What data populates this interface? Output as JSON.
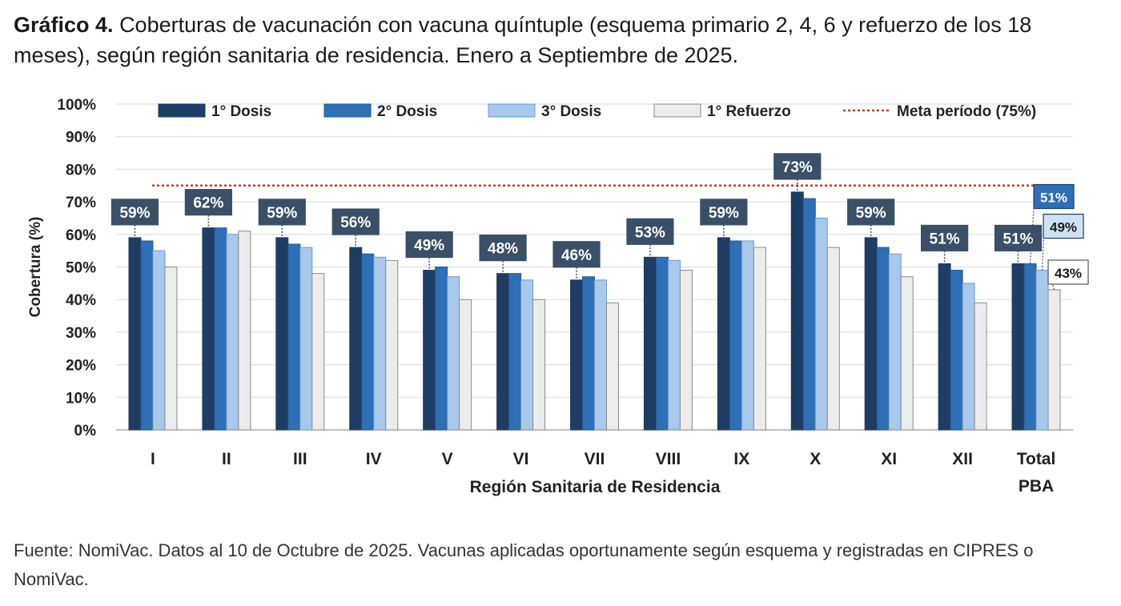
{
  "header": {
    "label": "Gráfico 4.",
    "text": "Coberturas de vacunación con vacuna quíntuple (esquema primario 2, 4, 6 y  refuerzo de los 18 meses), según región sanitaria de residencia. Enero a Septiembre de 2025."
  },
  "footer": {
    "source": "Fuente: NomiVac. Datos al 10 de Octubre de 2025. Vacunas aplicadas oportunamente según esquema y registradas en CIPRES o NomiVac."
  },
  "colors": {
    "dosis1": "#1f3d64",
    "dosis2": "#2e6fb5",
    "dosis3": "#a8c8ec",
    "refuerzo": "#ececec",
    "meta": "#c0392b",
    "label_box": "#3b4f66"
  },
  "chart_data": {
    "type": "bar",
    "title": "",
    "xlabel": "Región Sanitaria de Residencia",
    "ylabel": "Cobertura (%)",
    "ylim": [
      0,
      100
    ],
    "yticks": [
      0,
      10,
      20,
      30,
      40,
      50,
      60,
      70,
      80,
      90,
      100
    ],
    "ytick_labels": [
      "0%",
      "10%",
      "20%",
      "30%",
      "40%",
      "50%",
      "60%",
      "70%",
      "80%",
      "90%",
      "100%"
    ],
    "grid": true,
    "legend_position": "top",
    "categories": [
      "I",
      "II",
      "III",
      "IV",
      "V",
      "VI",
      "VII",
      "VIII",
      "IX",
      "X",
      "XI",
      "XII",
      "Total PBA"
    ],
    "series": [
      {
        "name": "1° Dosis",
        "values": [
          59,
          62,
          59,
          56,
          49,
          48,
          46,
          53,
          59,
          73,
          59,
          51,
          51
        ]
      },
      {
        "name": "2° Dosis",
        "values": [
          58,
          62,
          57,
          54,
          50,
          48,
          47,
          53,
          58,
          71,
          56,
          49,
          51
        ]
      },
      {
        "name": "3° Dosis",
        "values": [
          55,
          60,
          56,
          53,
          47,
          46,
          46,
          52,
          58,
          65,
          54,
          45,
          49
        ]
      },
      {
        "name": "1° Refuerzo",
        "values": [
          50,
          61,
          48,
          52,
          40,
          40,
          39,
          49,
          56,
          56,
          47,
          39,
          43
        ]
      }
    ],
    "target_line": {
      "name": "Meta período (75%)",
      "value": 75
    },
    "data_labels": {
      "first_dose": [
        "59%",
        "62%",
        "59%",
        "56%",
        "49%",
        "48%",
        "46%",
        "53%",
        "59%",
        "73%",
        "59%",
        "51%",
        "51%"
      ],
      "total_extra": [
        "51%",
        "49%",
        "43%"
      ]
    }
  }
}
